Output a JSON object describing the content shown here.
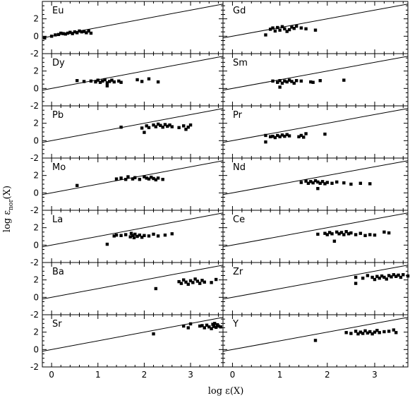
{
  "figure": {
    "xlabel": "log ε(X)",
    "ylabel_main": "log ε",
    "ylabel_sub": "nor",
    "ylabel_tail": "(X)"
  },
  "chart_data": {
    "type": "scatter",
    "layout": "7 rows x 2 columns, shared axes",
    "xlim": [
      -0.2,
      3.7
    ],
    "ylim": [
      -2,
      4
    ],
    "x_ticks": [
      0,
      1,
      2,
      3
    ],
    "x_tick_labels": [
      "0",
      "1",
      "2",
      "3"
    ],
    "y_ticks": [
      -2,
      0,
      2
    ],
    "y_tick_labels": [
      "-2",
      "0",
      "2"
    ],
    "reference_line": {
      "slope": 1,
      "intercept": 0
    },
    "panels": [
      {
        "label": "Eu",
        "points": [
          [
            -0.15,
            -0.2
          ],
          [
            0.0,
            0.0
          ],
          [
            0.08,
            0.15
          ],
          [
            0.15,
            0.2
          ],
          [
            0.2,
            0.35
          ],
          [
            0.25,
            0.3
          ],
          [
            0.3,
            0.25
          ],
          [
            0.35,
            0.35
          ],
          [
            0.4,
            0.45
          ],
          [
            0.45,
            0.3
          ],
          [
            0.5,
            0.5
          ],
          [
            0.55,
            0.4
          ],
          [
            0.6,
            0.6
          ],
          [
            0.65,
            0.5
          ],
          [
            0.7,
            0.55
          ],
          [
            0.75,
            0.4
          ],
          [
            0.8,
            0.6
          ],
          [
            0.85,
            0.35
          ]
        ]
      },
      {
        "label": "Gd",
        "points": [
          [
            0.7,
            0.15
          ],
          [
            0.8,
            0.8
          ],
          [
            0.85,
            0.95
          ],
          [
            0.9,
            0.6
          ],
          [
            0.95,
            1.0
          ],
          [
            1.0,
            0.7
          ],
          [
            1.05,
            1.1
          ],
          [
            1.1,
            0.85
          ],
          [
            1.15,
            0.55
          ],
          [
            1.2,
            0.75
          ],
          [
            1.25,
            1.05
          ],
          [
            1.3,
            0.9
          ],
          [
            1.35,
            1.15
          ],
          [
            1.45,
            0.95
          ],
          [
            1.55,
            0.85
          ],
          [
            1.75,
            0.7
          ]
        ]
      },
      {
        "label": "Dy",
        "points": [
          [
            0.55,
            0.9
          ],
          [
            0.7,
            0.8
          ],
          [
            0.85,
            0.85
          ],
          [
            0.95,
            0.75
          ],
          [
            1.0,
            0.95
          ],
          [
            1.05,
            0.7
          ],
          [
            1.1,
            0.85
          ],
          [
            1.15,
            1.0
          ],
          [
            1.2,
            0.65
          ],
          [
            1.25,
            0.8
          ],
          [
            1.3,
            0.95
          ],
          [
            1.35,
            0.75
          ],
          [
            1.45,
            0.85
          ],
          [
            1.5,
            0.7
          ],
          [
            1.2,
            0.3
          ],
          [
            1.85,
            1.0
          ],
          [
            1.95,
            0.8
          ],
          [
            2.1,
            1.1
          ],
          [
            2.3,
            0.75
          ]
        ]
      },
      {
        "label": "Sm",
        "points": [
          [
            0.85,
            0.85
          ],
          [
            0.95,
            0.7
          ],
          [
            1.0,
            0.9
          ],
          [
            1.05,
            0.6
          ],
          [
            1.1,
            0.85
          ],
          [
            1.15,
            0.75
          ],
          [
            1.2,
            0.95
          ],
          [
            1.25,
            0.8
          ],
          [
            1.3,
            0.6
          ],
          [
            1.35,
            0.9
          ],
          [
            1.45,
            0.85
          ],
          [
            1.0,
            0.15
          ],
          [
            1.65,
            0.75
          ],
          [
            1.7,
            0.7
          ],
          [
            1.85,
            0.9
          ],
          [
            2.35,
            0.95
          ]
        ]
      },
      {
        "label": "Pb",
        "points": [
          [
            1.5,
            1.55
          ],
          [
            1.95,
            1.45
          ],
          [
            2.0,
            0.95
          ],
          [
            2.05,
            1.7
          ],
          [
            2.1,
            1.5
          ],
          [
            2.2,
            1.8
          ],
          [
            2.25,
            1.6
          ],
          [
            2.3,
            1.9
          ],
          [
            2.35,
            1.75
          ],
          [
            2.4,
            1.55
          ],
          [
            2.45,
            1.85
          ],
          [
            2.5,
            1.65
          ],
          [
            2.55,
            1.8
          ],
          [
            2.6,
            1.6
          ],
          [
            2.75,
            1.5
          ],
          [
            2.85,
            1.7
          ],
          [
            2.9,
            1.3
          ],
          [
            2.95,
            1.55
          ],
          [
            3.0,
            1.8
          ]
        ]
      },
      {
        "label": "Pr",
        "points": [
          [
            0.7,
            -0.15
          ],
          [
            0.7,
            0.6
          ],
          [
            0.8,
            0.45
          ],
          [
            0.85,
            0.5
          ],
          [
            0.9,
            0.35
          ],
          [
            0.95,
            0.6
          ],
          [
            1.0,
            0.45
          ],
          [
            1.05,
            0.65
          ],
          [
            1.1,
            0.5
          ],
          [
            1.15,
            0.7
          ],
          [
            1.2,
            0.55
          ],
          [
            1.4,
            0.45
          ],
          [
            1.45,
            0.6
          ],
          [
            1.5,
            0.4
          ],
          [
            1.55,
            0.8
          ],
          [
            1.95,
            0.75
          ]
        ]
      },
      {
        "label": "Mo",
        "points": [
          [
            0.55,
            0.85
          ],
          [
            1.4,
            1.6
          ],
          [
            1.5,
            1.7
          ],
          [
            1.6,
            1.55
          ],
          [
            1.65,
            1.85
          ],
          [
            1.75,
            1.6
          ],
          [
            1.8,
            1.75
          ],
          [
            1.9,
            1.55
          ],
          [
            2.0,
            1.85
          ],
          [
            2.05,
            1.7
          ],
          [
            2.1,
            1.6
          ],
          [
            2.15,
            1.8
          ],
          [
            2.2,
            1.65
          ],
          [
            2.25,
            1.5
          ],
          [
            2.3,
            1.7
          ],
          [
            2.4,
            1.55
          ]
        ]
      },
      {
        "label": "Nd",
        "points": [
          [
            1.45,
            1.2
          ],
          [
            1.55,
            1.35
          ],
          [
            1.6,
            1.1
          ],
          [
            1.65,
            1.3
          ],
          [
            1.7,
            1.15
          ],
          [
            1.75,
            1.4
          ],
          [
            1.8,
            0.5
          ],
          [
            1.8,
            1.25
          ],
          [
            1.85,
            1.1
          ],
          [
            1.9,
            1.3
          ],
          [
            1.95,
            1.05
          ],
          [
            2.0,
            1.2
          ],
          [
            2.1,
            1.1
          ],
          [
            2.2,
            1.25
          ],
          [
            2.35,
            1.15
          ],
          [
            2.5,
            1.0
          ],
          [
            2.7,
            1.1
          ],
          [
            2.9,
            1.05
          ]
        ]
      },
      {
        "label": "La",
        "points": [
          [
            1.2,
            0.1
          ],
          [
            1.35,
            1.05
          ],
          [
            1.4,
            1.15
          ],
          [
            1.5,
            1.1
          ],
          [
            1.6,
            1.2
          ],
          [
            1.7,
            0.95
          ],
          [
            1.72,
            1.35
          ],
          [
            1.75,
            1.1
          ],
          [
            1.78,
            0.85
          ],
          [
            1.8,
            1.25
          ],
          [
            1.85,
            1.0
          ],
          [
            1.9,
            1.15
          ],
          [
            1.95,
            0.9
          ],
          [
            2.0,
            1.1
          ],
          [
            2.1,
            1.05
          ],
          [
            2.2,
            1.25
          ],
          [
            2.3,
            1.05
          ],
          [
            2.45,
            1.15
          ],
          [
            2.6,
            1.3
          ]
        ]
      },
      {
        "label": "Ce",
        "points": [
          [
            1.8,
            1.25
          ],
          [
            1.95,
            1.35
          ],
          [
            2.0,
            1.2
          ],
          [
            2.05,
            1.45
          ],
          [
            2.1,
            1.3
          ],
          [
            2.15,
            0.45
          ],
          [
            2.2,
            1.5
          ],
          [
            2.25,
            1.3
          ],
          [
            2.3,
            1.45
          ],
          [
            2.35,
            1.2
          ],
          [
            2.4,
            1.55
          ],
          [
            2.45,
            1.3
          ],
          [
            2.5,
            1.4
          ],
          [
            2.6,
            1.2
          ],
          [
            2.7,
            1.35
          ],
          [
            2.8,
            1.1
          ],
          [
            2.9,
            1.2
          ],
          [
            3.0,
            1.15
          ],
          [
            3.2,
            1.5
          ],
          [
            3.3,
            1.4
          ]
        ]
      },
      {
        "label": "Ba",
        "points": [
          [
            2.25,
            1.0
          ],
          [
            2.75,
            1.8
          ],
          [
            2.8,
            1.6
          ],
          [
            2.85,
            2.0
          ],
          [
            2.9,
            1.75
          ],
          [
            2.95,
            1.5
          ],
          [
            3.0,
            1.9
          ],
          [
            3.05,
            1.7
          ],
          [
            3.1,
            2.1
          ],
          [
            3.15,
            1.85
          ],
          [
            3.2,
            1.6
          ],
          [
            3.25,
            1.95
          ],
          [
            3.3,
            1.75
          ],
          [
            3.45,
            1.7
          ],
          [
            3.55,
            2.05
          ]
        ]
      },
      {
        "label": "Zr",
        "points": [
          [
            2.6,
            1.6
          ],
          [
            2.6,
            2.3
          ],
          [
            2.75,
            2.2
          ],
          [
            2.85,
            2.5
          ],
          [
            2.95,
            2.3
          ],
          [
            3.0,
            2.05
          ],
          [
            3.05,
            2.4
          ],
          [
            3.1,
            2.2
          ],
          [
            3.15,
            2.45
          ],
          [
            3.2,
            2.3
          ],
          [
            3.25,
            2.1
          ],
          [
            3.3,
            2.5
          ],
          [
            3.35,
            2.35
          ],
          [
            3.4,
            2.6
          ],
          [
            3.45,
            2.4
          ],
          [
            3.5,
            2.55
          ],
          [
            3.55,
            2.3
          ],
          [
            3.6,
            2.6
          ],
          [
            3.7,
            2.45
          ]
        ]
      },
      {
        "label": "Sr",
        "points": [
          [
            2.2,
            1.8
          ],
          [
            2.85,
            2.7
          ],
          [
            2.95,
            2.5
          ],
          [
            3.0,
            2.95
          ],
          [
            3.2,
            2.7
          ],
          [
            3.25,
            2.75
          ],
          [
            3.3,
            2.5
          ],
          [
            3.35,
            2.8
          ],
          [
            3.4,
            2.6
          ],
          [
            3.45,
            2.4
          ],
          [
            3.48,
            2.9
          ],
          [
            3.5,
            2.65
          ],
          [
            3.52,
            3.0
          ],
          [
            3.55,
            2.55
          ],
          [
            3.58,
            2.85
          ],
          [
            3.6,
            2.7
          ],
          [
            3.65,
            2.6
          ]
        ]
      },
      {
        "label": "Y",
        "points": [
          [
            1.75,
            1.05
          ],
          [
            2.4,
            1.95
          ],
          [
            2.5,
            1.85
          ],
          [
            2.6,
            2.1
          ],
          [
            2.65,
            1.8
          ],
          [
            2.7,
            2.0
          ],
          [
            2.75,
            1.85
          ],
          [
            2.8,
            2.15
          ],
          [
            2.85,
            1.9
          ],
          [
            2.9,
            2.05
          ],
          [
            2.95,
            1.8
          ],
          [
            3.0,
            2.0
          ],
          [
            3.05,
            2.2
          ],
          [
            3.1,
            1.95
          ],
          [
            3.2,
            2.05
          ],
          [
            3.3,
            2.1
          ],
          [
            3.4,
            2.25
          ],
          [
            3.45,
            1.95
          ]
        ]
      }
    ]
  }
}
